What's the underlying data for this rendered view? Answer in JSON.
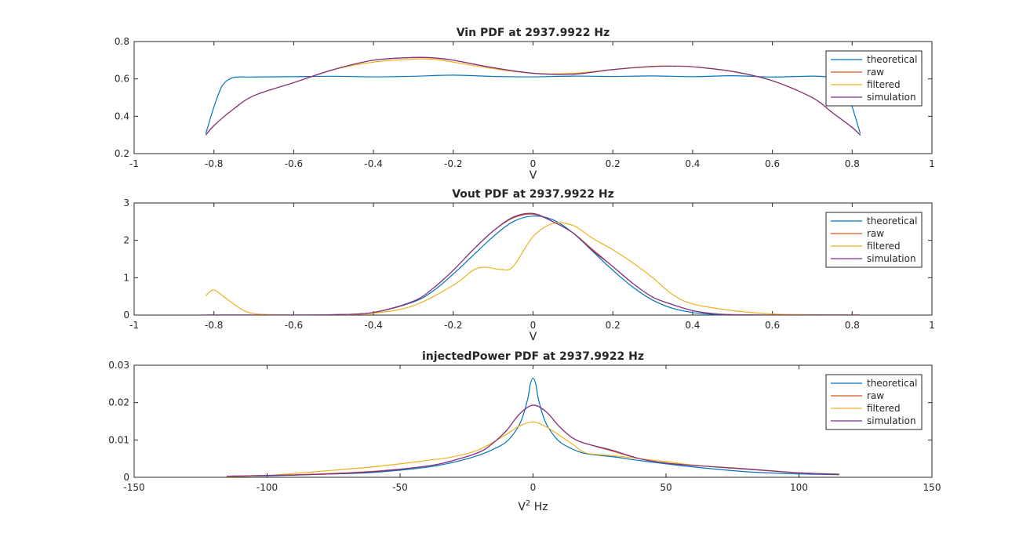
{
  "colors": {
    "theoretical": "#0072BD",
    "raw": "#D95319",
    "filtered": "#EDB120",
    "simulation": "#7E2F8E"
  },
  "chart_data": [
    {
      "type": "line",
      "title": "Vin PDF at 2937.9922 Hz",
      "xlabel": "V",
      "ylabel": "",
      "xlim": [
        -1,
        1
      ],
      "ylim": [
        0.2,
        0.8
      ],
      "xticks": [
        -1,
        -0.8,
        -0.6,
        -0.4,
        -0.2,
        0,
        0.2,
        0.4,
        0.6,
        0.8,
        1
      ],
      "xtick_labels": [
        "-1",
        "-0.8",
        "-0.6",
        "-0.4",
        "-0.2",
        "0",
        "0.2",
        "0.4",
        "0.6",
        "0.8",
        "1"
      ],
      "yticks": [
        0.2,
        0.4,
        0.6,
        0.8
      ],
      "ytick_labels": [
        "0.2",
        "0.4",
        "0.6",
        "0.8"
      ],
      "legend_position": "top-right",
      "series": [
        {
          "name": "theoretical",
          "x": [
            -0.82,
            -0.8,
            -0.78,
            -0.76,
            -0.74,
            -0.7,
            -0.6,
            -0.5,
            -0.4,
            -0.3,
            -0.2,
            -0.1,
            0,
            0.1,
            0.2,
            0.3,
            0.4,
            0.5,
            0.6,
            0.7,
            0.74,
            0.76,
            0.78,
            0.8,
            0.82
          ],
          "y": [
            0.31,
            0.45,
            0.56,
            0.6,
            0.61,
            0.61,
            0.612,
            0.614,
            0.611,
            0.614,
            0.62,
            0.613,
            0.611,
            0.615,
            0.613,
            0.616,
            0.612,
            0.617,
            0.61,
            0.615,
            0.61,
            0.6,
            0.56,
            0.45,
            0.31
          ]
        },
        {
          "name": "raw",
          "x": [
            -0.82,
            -0.8,
            -0.75,
            -0.7,
            -0.6,
            -0.5,
            -0.4,
            -0.3,
            -0.25,
            -0.2,
            -0.1,
            0,
            0.1,
            0.2,
            0.3,
            0.35,
            0.4,
            0.5,
            0.6,
            0.7,
            0.75,
            0.8,
            0.82
          ],
          "y": [
            0.3,
            0.35,
            0.44,
            0.51,
            0.58,
            0.65,
            0.7,
            0.714,
            0.712,
            0.7,
            0.66,
            0.63,
            0.625,
            0.65,
            0.667,
            0.668,
            0.665,
            0.64,
            0.59,
            0.5,
            0.42,
            0.34,
            0.3
          ]
        },
        {
          "name": "filtered",
          "x": [
            -0.82,
            -0.8,
            -0.75,
            -0.7,
            -0.6,
            -0.5,
            -0.4,
            -0.3,
            -0.25,
            -0.2,
            -0.1,
            0,
            0.1,
            0.2,
            0.3,
            0.35,
            0.4,
            0.5,
            0.6,
            0.7,
            0.75,
            0.8,
            0.82
          ],
          "y": [
            0.3,
            0.35,
            0.44,
            0.51,
            0.58,
            0.65,
            0.69,
            0.706,
            0.705,
            0.69,
            0.655,
            0.63,
            0.63,
            0.65,
            0.665,
            0.668,
            0.665,
            0.64,
            0.59,
            0.5,
            0.42,
            0.34,
            0.3
          ]
        },
        {
          "name": "simulation",
          "x": [
            -0.82,
            -0.8,
            -0.75,
            -0.7,
            -0.6,
            -0.5,
            -0.4,
            -0.3,
            -0.25,
            -0.2,
            -0.1,
            0,
            0.1,
            0.2,
            0.3,
            0.35,
            0.4,
            0.5,
            0.6,
            0.7,
            0.75,
            0.8,
            0.82
          ],
          "y": [
            0.3,
            0.35,
            0.44,
            0.51,
            0.58,
            0.65,
            0.7,
            0.715,
            0.713,
            0.7,
            0.66,
            0.63,
            0.625,
            0.65,
            0.667,
            0.668,
            0.665,
            0.64,
            0.59,
            0.5,
            0.42,
            0.34,
            0.3
          ]
        }
      ]
    },
    {
      "type": "line",
      "title": "Vout PDF at 2937.9922 Hz",
      "xlabel": "V",
      "ylabel": "",
      "xlim": [
        -1,
        1
      ],
      "ylim": [
        0,
        3
      ],
      "xticks": [
        -1,
        -0.8,
        -0.6,
        -0.4,
        -0.2,
        0,
        0.2,
        0.4,
        0.6,
        0.8,
        1
      ],
      "xtick_labels": [
        "-1",
        "-0.8",
        "-0.6",
        "-0.4",
        "-0.2",
        "0",
        "0.2",
        "0.4",
        "0.6",
        "0.8",
        "1"
      ],
      "yticks": [
        0,
        1,
        2,
        3
      ],
      "ytick_labels": [
        "0",
        "1",
        "2",
        "3"
      ],
      "legend_position": "top-right",
      "series": [
        {
          "name": "theoretical",
          "x": [
            -0.82,
            -0.6,
            -0.5,
            -0.4,
            -0.3,
            -0.25,
            -0.2,
            -0.15,
            -0.1,
            -0.05,
            0,
            0.05,
            0.1,
            0.15,
            0.2,
            0.25,
            0.3,
            0.35,
            0.4,
            0.45,
            0.5,
            0.6,
            0.82
          ],
          "y": [
            0,
            0,
            0.01,
            0.07,
            0.35,
            0.65,
            1.1,
            1.6,
            2.1,
            2.5,
            2.65,
            2.55,
            2.2,
            1.7,
            1.2,
            0.75,
            0.4,
            0.18,
            0.07,
            0.02,
            0.005,
            0,
            0
          ]
        },
        {
          "name": "raw",
          "x": [
            -0.82,
            -0.6,
            -0.5,
            -0.4,
            -0.3,
            -0.25,
            -0.2,
            -0.15,
            -0.1,
            -0.05,
            0,
            0.05,
            0.1,
            0.15,
            0.2,
            0.25,
            0.3,
            0.35,
            0.4,
            0.45,
            0.5,
            0.6,
            0.82
          ],
          "y": [
            0,
            0,
            0.01,
            0.07,
            0.37,
            0.72,
            1.2,
            1.75,
            2.25,
            2.6,
            2.7,
            2.5,
            2.2,
            1.75,
            1.3,
            0.85,
            0.48,
            0.28,
            0.12,
            0.04,
            0.01,
            0,
            0
          ]
        },
        {
          "name": "filtered",
          "x": [
            -0.82,
            -0.8,
            -0.77,
            -0.73,
            -0.7,
            -0.65,
            -0.6,
            -0.5,
            -0.4,
            -0.3,
            -0.2,
            -0.15,
            -0.12,
            -0.08,
            -0.05,
            0,
            0.05,
            0.1,
            0.15,
            0.2,
            0.25,
            0.3,
            0.35,
            0.4,
            0.5,
            0.6,
            0.7,
            0.82
          ],
          "y": [
            0.52,
            0.67,
            0.45,
            0.15,
            0.04,
            0.01,
            0,
            0.01,
            0.05,
            0.25,
            0.8,
            1.2,
            1.28,
            1.22,
            1.3,
            2.1,
            2.45,
            2.4,
            2.05,
            1.75,
            1.4,
            1.0,
            0.55,
            0.3,
            0.12,
            0.03,
            0.01,
            0
          ]
        },
        {
          "name": "simulation",
          "x": [
            -0.82,
            -0.6,
            -0.5,
            -0.4,
            -0.3,
            -0.25,
            -0.2,
            -0.15,
            -0.1,
            -0.05,
            0,
            0.05,
            0.1,
            0.15,
            0.2,
            0.25,
            0.3,
            0.35,
            0.4,
            0.45,
            0.5,
            0.6,
            0.82
          ],
          "y": [
            0,
            0,
            0.01,
            0.07,
            0.37,
            0.72,
            1.2,
            1.75,
            2.25,
            2.62,
            2.72,
            2.5,
            2.2,
            1.72,
            1.3,
            0.85,
            0.48,
            0.28,
            0.12,
            0.04,
            0.01,
            0,
            0
          ]
        }
      ]
    },
    {
      "type": "line",
      "title": "injectedPower PDF at 2937.9922 Hz",
      "xlabel": "V",
      "xlabel_superscript": "2",
      "xlabel_suffix": " Hz",
      "ylabel": "",
      "xlim": [
        -150,
        150
      ],
      "ylim": [
        0,
        0.03
      ],
      "xticks": [
        -150,
        -100,
        -50,
        0,
        50,
        100,
        150
      ],
      "xtick_labels": [
        "-150",
        "-100",
        "-50",
        "0",
        "50",
        "100",
        "150"
      ],
      "yticks": [
        0,
        0.01,
        0.02,
        0.03
      ],
      "ytick_labels": [
        "0",
        "0.01",
        "0.02",
        "0.03"
      ],
      "legend_position": "top-right",
      "series": [
        {
          "name": "theoretical",
          "x": [
            -115,
            -100,
            -80,
            -60,
            -40,
            -30,
            -20,
            -15,
            -10,
            -6,
            -4,
            -2,
            -1,
            0,
            1,
            2,
            4,
            6,
            10,
            15,
            20,
            30,
            40,
            60,
            80,
            100,
            115
          ],
          "y": [
            0.0002,
            0.0004,
            0.0008,
            0.0013,
            0.0027,
            0.004,
            0.006,
            0.0075,
            0.0095,
            0.013,
            0.016,
            0.021,
            0.025,
            0.0265,
            0.025,
            0.021,
            0.016,
            0.013,
            0.0095,
            0.0075,
            0.0063,
            0.0055,
            0.0045,
            0.0028,
            0.0015,
            0.0009,
            0.0007
          ]
        },
        {
          "name": "raw",
          "x": [
            -115,
            -100,
            -80,
            -60,
            -40,
            -30,
            -20,
            -15,
            -10,
            -5,
            0,
            5,
            10,
            15,
            20,
            30,
            40,
            50,
            60,
            80,
            100,
            115
          ],
          "y": [
            0.0003,
            0.0005,
            0.0009,
            0.0016,
            0.003,
            0.0045,
            0.0068,
            0.0092,
            0.0125,
            0.017,
            0.0193,
            0.0175,
            0.0135,
            0.0105,
            0.009,
            0.007,
            0.005,
            0.0038,
            0.0032,
            0.0023,
            0.0012,
            0.0008
          ]
        },
        {
          "name": "filtered",
          "x": [
            -115,
            -100,
            -80,
            -60,
            -40,
            -30,
            -20,
            -10,
            -5,
            0,
            5,
            10,
            15,
            20,
            30,
            40,
            50,
            60,
            80,
            100,
            115
          ],
          "y": [
            0.0002,
            0.0005,
            0.0016,
            0.0028,
            0.0045,
            0.0055,
            0.0075,
            0.0115,
            0.0138,
            0.0148,
            0.0135,
            0.0112,
            0.0088,
            0.0065,
            0.0058,
            0.005,
            0.0042,
            0.0033,
            0.0022,
            0.0012,
            0.0009
          ]
        },
        {
          "name": "simulation",
          "x": [
            -115,
            -100,
            -80,
            -60,
            -40,
            -30,
            -20,
            -15,
            -10,
            -5,
            0,
            5,
            10,
            15,
            20,
            30,
            40,
            50,
            60,
            80,
            100,
            115
          ],
          "y": [
            0.0003,
            0.0005,
            0.0008,
            0.0015,
            0.003,
            0.0045,
            0.0068,
            0.0092,
            0.0125,
            0.017,
            0.0193,
            0.0175,
            0.0135,
            0.0105,
            0.009,
            0.0072,
            0.005,
            0.0038,
            0.0032,
            0.0022,
            0.0012,
            0.0008
          ]
        }
      ]
    }
  ]
}
